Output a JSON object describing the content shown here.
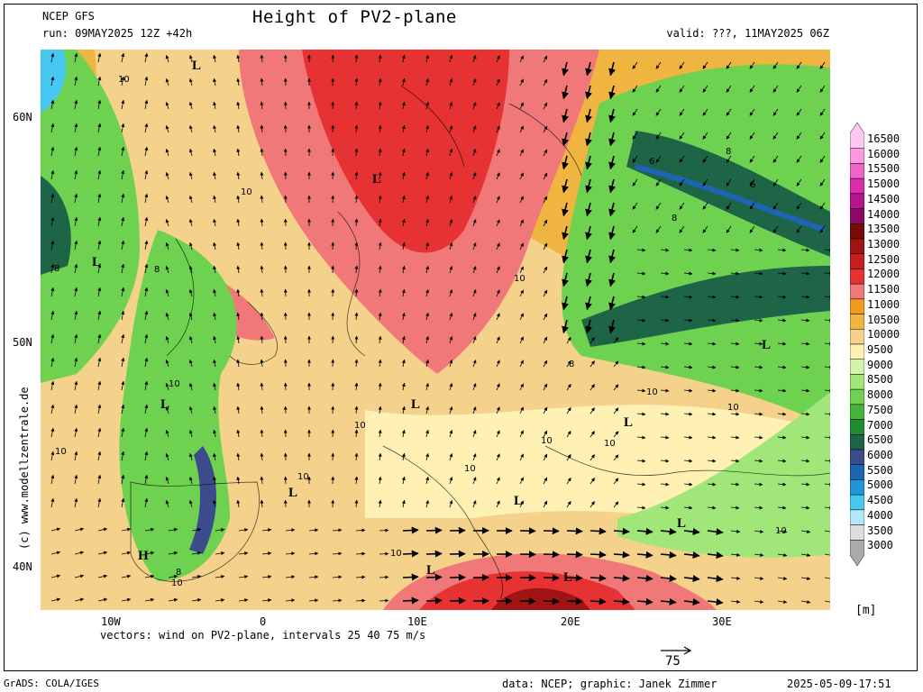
{
  "header": {
    "title": "Height of PV2-plane",
    "model": "NCEP GFS",
    "run": "run: 09MAY2025 12Z +42h",
    "valid": "valid: ???, 11MAY2025 06Z"
  },
  "axes": {
    "lat_labels": [
      "60N",
      "50N",
      "40N"
    ],
    "lon_labels": [
      "10W",
      "0",
      "10E",
      "20E",
      "30E"
    ]
  },
  "map_labels": {
    "lows": "L",
    "high": "H",
    "contour_values": [
      "6",
      "8",
      "10"
    ]
  },
  "vectors": {
    "note": "vectors: wind on PV2-plane, intervals 25 40 75 m/s",
    "reference_value": "75"
  },
  "colorbar": {
    "unit": "[m]",
    "levels": [
      "16500",
      "16000",
      "15500",
      "15000",
      "14500",
      "14000",
      "13500",
      "13000",
      "12500",
      "12000",
      "11500",
      "11000",
      "10500",
      "10000",
      "9500",
      "9000",
      "8500",
      "8000",
      "7500",
      "7000",
      "6500",
      "6000",
      "5500",
      "5000",
      "4500",
      "4000",
      "3500",
      "3000"
    ],
    "colors": [
      "#ffc8f0",
      "#ff96e0",
      "#f064c8",
      "#dc2dac",
      "#b4148c",
      "#8c0a64",
      "#7a0a0a",
      "#a01414",
      "#c81e1e",
      "#e63232",
      "#f07878",
      "#f09a1e",
      "#f0b440",
      "#f5d28c",
      "#fff0b4",
      "#d2f5aa",
      "#a0e678",
      "#6ed250",
      "#46b43c",
      "#1e8c32",
      "#1e6446",
      "#3c4b8c",
      "#1e64b4",
      "#1e96dc",
      "#46c8f0",
      "#b4e6fa",
      "#dcdcdc",
      "#aaaaaa"
    ],
    "field_color_ocean": "#f5d28c",
    "field_color_land": "#fff0b4"
  },
  "credits": {
    "vertical": "(c) www.modellzentrale.de",
    "footer_left": "GrADS: COLA/IGES",
    "footer_mid": "data: NCEP; graphic: Janek Zimmer",
    "footer_right": "2025-05-09-17:51"
  }
}
